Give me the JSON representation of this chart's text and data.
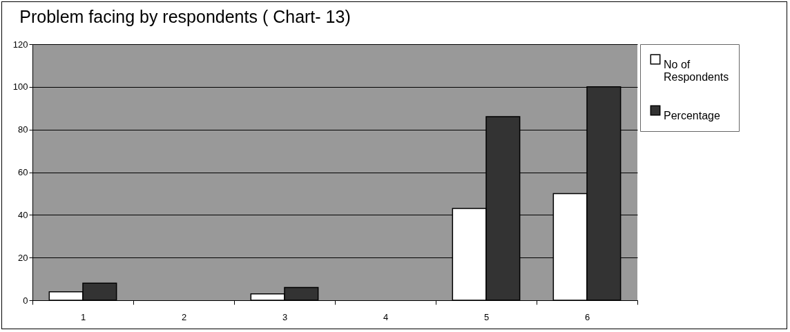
{
  "chart_data": {
    "type": "bar",
    "title": "Problem facing by respondents ( Chart- 13)",
    "categories": [
      "1",
      "2",
      "3",
      "4",
      "5",
      "6"
    ],
    "series": [
      {
        "name": "No of Respondents",
        "color": "#ffffff",
        "values": [
          4,
          0,
          3,
          0,
          43,
          50
        ]
      },
      {
        "name": "Percentage",
        "color": "#333333",
        "values": [
          8,
          0,
          6,
          0,
          86,
          100
        ]
      }
    ],
    "ylim": [
      0,
      120
    ],
    "yticks": [
      0,
      20,
      40,
      60,
      80,
      100,
      120
    ],
    "grid": "y",
    "legend": "right"
  }
}
